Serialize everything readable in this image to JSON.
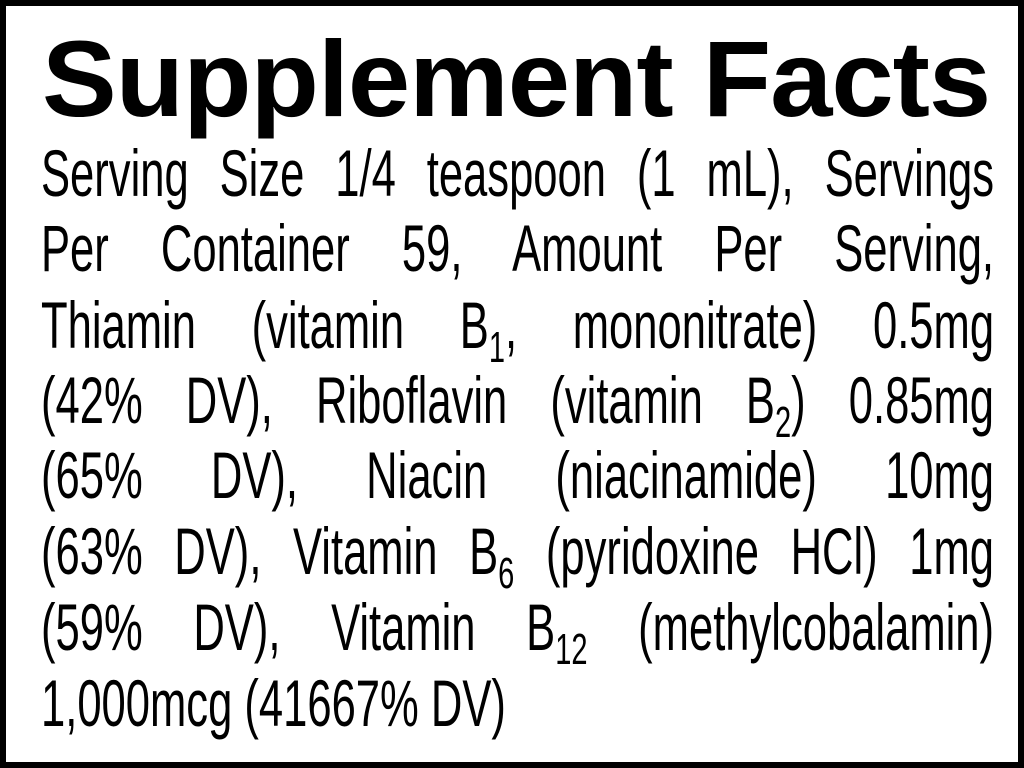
{
  "title": "Supplement Facts",
  "lines": [
    [
      {
        "t": "Serving Size 1/4 teaspoon (1 mL), Servings"
      }
    ],
    [
      {
        "t": "Per Container 59, Amount Per Serving,"
      }
    ],
    [
      {
        "t": "Thiamin (vitamin B"
      },
      {
        "sub": "1"
      },
      {
        "t": ", mononitrate) 0.5mg"
      }
    ],
    [
      {
        "t": "(42% DV), Riboflavin (vitamin B"
      },
      {
        "sub": "2"
      },
      {
        "t": ") 0.85mg"
      }
    ],
    [
      {
        "t": "(65% DV), Niacin (niacinamide) 10mg"
      }
    ],
    [
      {
        "t": "(63% DV), Vitamin B"
      },
      {
        "sub": "6"
      },
      {
        "t": " (pyridoxine HCl) 1mg"
      }
    ],
    [
      {
        "t": "(59% DV), Vitamin B"
      },
      {
        "sub": "12"
      },
      {
        "t": " (methylcobalamin)"
      }
    ],
    [
      {
        "t": "1,000mcg (41667% DV)"
      }
    ]
  ]
}
